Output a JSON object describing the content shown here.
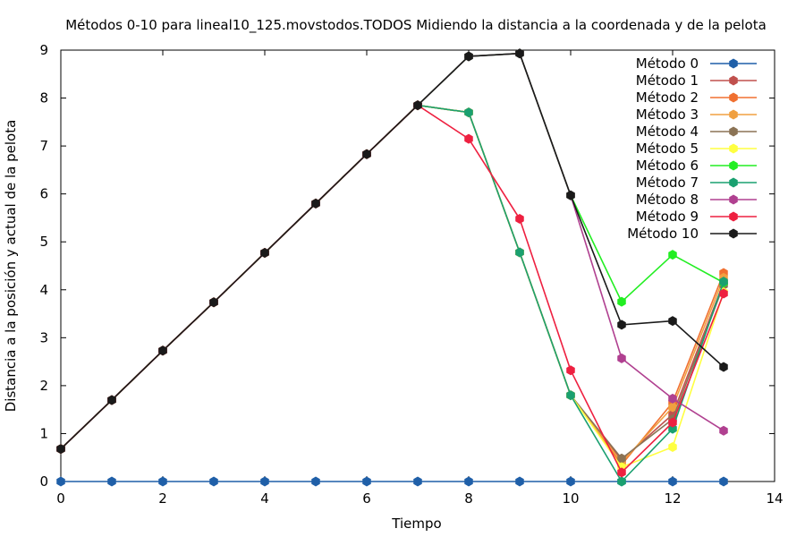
{
  "chart_data": {
    "type": "line",
    "title": "Métodos 0-10 para lineal10_125.movstodos.TODOS Midiendo la distancia a la coordenada y de la pelota",
    "xlabel": "Tiempo",
    "ylabel": "Distancia a la posición y actual de la pelota",
    "xlim": [
      0,
      14
    ],
    "ylim": [
      0,
      9
    ],
    "xticks": [
      "0",
      "2",
      "4",
      "6",
      "8",
      "10",
      "12",
      "14"
    ],
    "yticks": [
      "0",
      "1",
      "2",
      "3",
      "4",
      "5",
      "6",
      "7",
      "8",
      "9"
    ],
    "grid": false,
    "legend_position": "top-right",
    "x": [
      0,
      1,
      2,
      3,
      4,
      5,
      6,
      7,
      8,
      9,
      10,
      11,
      12,
      13
    ],
    "series": [
      {
        "name": "Método 0",
        "color": "#1f5fa8",
        "values": [
          0,
          0,
          0,
          0,
          0,
          0,
          0,
          0,
          0,
          0,
          0,
          0,
          0,
          0
        ]
      },
      {
        "name": "Método 1",
        "color": "#c0504d",
        "values": [
          0.68,
          1.7,
          2.73,
          3.74,
          4.77,
          5.8,
          6.83,
          7.85,
          7.7,
          4.78,
          1.8,
          0.45,
          1.4,
          4.15
        ]
      },
      {
        "name": "Método 2",
        "color": "#f07030",
        "values": [
          0.68,
          1.7,
          2.73,
          3.74,
          4.77,
          5.8,
          6.83,
          7.85,
          7.7,
          4.78,
          1.8,
          0.35,
          1.65,
          4.35
        ]
      },
      {
        "name": "Método 3",
        "color": "#f0a040",
        "values": [
          0.68,
          1.7,
          2.73,
          3.74,
          4.77,
          5.8,
          6.83,
          7.85,
          7.7,
          4.78,
          1.8,
          0.4,
          1.55,
          4.25
        ]
      },
      {
        "name": "Método 4",
        "color": "#8b7355",
        "values": [
          0.68,
          1.7,
          2.73,
          3.74,
          4.77,
          5.8,
          6.83,
          7.85,
          7.7,
          4.78,
          1.8,
          0.48,
          1.3,
          4.1
        ]
      },
      {
        "name": "Método 5",
        "color": "#ffff40",
        "values": [
          0.68,
          1.7,
          2.73,
          3.74,
          4.77,
          5.8,
          6.83,
          7.85,
          7.7,
          4.78,
          1.8,
          0.3,
          0.72,
          3.95
        ]
      },
      {
        "name": "Método 6",
        "color": "#22ee22",
        "values": [
          0.68,
          1.7,
          2.73,
          3.74,
          4.77,
          5.8,
          6.83,
          7.85,
          8.87,
          8.93,
          5.97,
          3.75,
          4.73,
          4.15
        ]
      },
      {
        "name": "Método 7",
        "color": "#1aa070",
        "values": [
          0.68,
          1.7,
          2.73,
          3.74,
          4.77,
          5.8,
          6.83,
          7.85,
          7.7,
          4.78,
          1.8,
          0.0,
          1.1,
          4.17
        ]
      },
      {
        "name": "Método 8",
        "color": "#b04090",
        "values": [
          0.68,
          1.7,
          2.73,
          3.74,
          4.77,
          5.8,
          6.83,
          7.85,
          8.87,
          8.93,
          5.97,
          2.57,
          1.73,
          1.06
        ]
      },
      {
        "name": "Método 9",
        "color": "#ee2040",
        "values": [
          0.68,
          1.7,
          2.73,
          3.74,
          4.77,
          5.8,
          6.83,
          7.85,
          7.15,
          5.48,
          2.32,
          0.19,
          1.23,
          3.92
        ]
      },
      {
        "name": "Método 10",
        "color": "#1a1a1a",
        "values": [
          0.68,
          1.7,
          2.73,
          3.74,
          4.77,
          5.8,
          6.83,
          7.85,
          8.87,
          8.93,
          5.97,
          3.27,
          3.35,
          2.39
        ]
      }
    ]
  }
}
